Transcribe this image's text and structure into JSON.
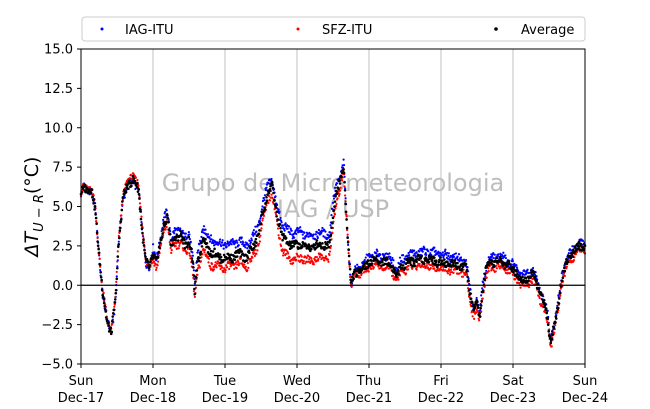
{
  "chart_data": {
    "type": "scatter",
    "ylabel": "ΔT_U−R(°C)",
    "ylabel_main": "ΔT",
    "ylabel_sub": "U − R",
    "ylabel_unit": "(°C)",
    "ylim": [
      -5.0,
      15.0
    ],
    "yticks": [
      "−5.0",
      "−2.5",
      "0.0",
      "2.5",
      "5.0",
      "7.5",
      "10.0",
      "12.5",
      "15.0"
    ],
    "ytick_values": [
      -5.0,
      -2.5,
      0.0,
      2.5,
      5.0,
      7.5,
      10.0,
      12.5,
      15.0
    ],
    "xlim": [
      0,
      7
    ],
    "x_unit": "days since Sun Dec-17 00:00",
    "xticks": [
      {
        "day": "Sun",
        "date": "Dec-17"
      },
      {
        "day": "Mon",
        "date": "Dec-18"
      },
      {
        "day": "Tue",
        "date": "Dec-19"
      },
      {
        "day": "Wed",
        "date": "Dec-20"
      },
      {
        "day": "Thu",
        "date": "Dec-21"
      },
      {
        "day": "Fri",
        "date": "Dec-22"
      },
      {
        "day": "Sat",
        "date": "Dec-23"
      },
      {
        "day": "Sun",
        "date": "Dec-24"
      }
    ],
    "grid": "vertical",
    "legend_position": "top",
    "watermark": [
      "Grupo de Micrometeorologia",
      "IAG / USP"
    ],
    "average_anchors": [
      [
        0.0,
        5.8
      ],
      [
        0.05,
        6.3
      ],
      [
        0.1,
        6.1
      ],
      [
        0.15,
        5.9
      ],
      [
        0.2,
        4.8
      ],
      [
        0.25,
        2.0
      ],
      [
        0.3,
        -0.5
      ],
      [
        0.36,
        -2.2
      ],
      [
        0.42,
        -3.0
      ],
      [
        0.48,
        -1.0
      ],
      [
        0.52,
        2.5
      ],
      [
        0.58,
        5.5
      ],
      [
        0.65,
        6.3
      ],
      [
        0.72,
        6.8
      ],
      [
        0.8,
        6.0
      ],
      [
        0.85,
        3.5
      ],
      [
        0.9,
        1.5
      ],
      [
        0.95,
        1.0
      ],
      [
        1.0,
        2.0
      ],
      [
        1.05,
        1.5
      ],
      [
        1.1,
        2.5
      ],
      [
        1.15,
        3.8
      ],
      [
        1.2,
        4.5
      ],
      [
        1.25,
        2.5
      ],
      [
        1.3,
        3.0
      ],
      [
        1.38,
        3.2
      ],
      [
        1.45,
        2.5
      ],
      [
        1.5,
        3.0
      ],
      [
        1.55,
        1.5
      ],
      [
        1.58,
        -0.5
      ],
      [
        1.62,
        1.5
      ],
      [
        1.7,
        3.0
      ],
      [
        1.78,
        2.2
      ],
      [
        1.85,
        2.0
      ],
      [
        1.92,
        1.8
      ],
      [
        2.0,
        1.7
      ],
      [
        2.1,
        1.8
      ],
      [
        2.2,
        2.0
      ],
      [
        2.3,
        1.8
      ],
      [
        2.4,
        2.5
      ],
      [
        2.48,
        3.5
      ],
      [
        2.52,
        4.5
      ],
      [
        2.55,
        5.0
      ],
      [
        2.6,
        6.0
      ],
      [
        2.65,
        6.3
      ],
      [
        2.7,
        5.0
      ],
      [
        2.75,
        4.0
      ],
      [
        2.8,
        3.0
      ],
      [
        2.85,
        2.8
      ],
      [
        2.95,
        2.5
      ],
      [
        3.05,
        2.6
      ],
      [
        3.15,
        2.4
      ],
      [
        3.25,
        2.5
      ],
      [
        3.35,
        2.6
      ],
      [
        3.45,
        2.5
      ],
      [
        3.5,
        4.5
      ],
      [
        3.55,
        6.0
      ],
      [
        3.6,
        6.5
      ],
      [
        3.65,
        7.5
      ],
      [
        3.68,
        5.0
      ],
      [
        3.72,
        2.0
      ],
      [
        3.75,
        0.0
      ],
      [
        3.8,
        0.8
      ],
      [
        3.88,
        1.0
      ],
      [
        3.95,
        1.2
      ],
      [
        4.0,
        1.5
      ],
      [
        4.1,
        1.6
      ],
      [
        4.2,
        1.5
      ],
      [
        4.28,
        1.4
      ],
      [
        4.33,
        1.2
      ],
      [
        4.38,
        0.5
      ],
      [
        4.45,
        1.2
      ],
      [
        4.55,
        1.5
      ],
      [
        4.65,
        1.6
      ],
      [
        4.8,
        1.7
      ],
      [
        4.95,
        1.5
      ],
      [
        5.1,
        1.4
      ],
      [
        5.25,
        1.3
      ],
      [
        5.35,
        1.1
      ],
      [
        5.42,
        -1.0
      ],
      [
        5.46,
        -1.5
      ],
      [
        5.5,
        -1.2
      ],
      [
        5.54,
        -2.0
      ],
      [
        5.58,
        -0.2
      ],
      [
        5.62,
        0.8
      ],
      [
        5.68,
        1.4
      ],
      [
        5.75,
        1.5
      ],
      [
        5.85,
        1.5
      ],
      [
        5.95,
        1.2
      ],
      [
        6.05,
        0.8
      ],
      [
        6.12,
        0.3
      ],
      [
        6.2,
        0.5
      ],
      [
        6.28,
        0.7
      ],
      [
        6.33,
        0.2
      ],
      [
        6.38,
        -0.5
      ],
      [
        6.42,
        -1.0
      ],
      [
        6.48,
        -2.0
      ],
      [
        6.52,
        -3.5
      ],
      [
        6.58,
        -2.5
      ],
      [
        6.62,
        -1.5
      ],
      [
        6.68,
        0.5
      ],
      [
        6.75,
        1.5
      ],
      [
        6.82,
        2.0
      ],
      [
        6.9,
        2.4
      ],
      [
        7.0,
        2.5
      ]
    ],
    "series": [
      {
        "name": "IAG-ITU",
        "color": "#0000ff",
        "offset_anchors": [
          [
            0,
            0
          ],
          [
            0.9,
            0
          ],
          [
            1.0,
            0.3
          ],
          [
            1.5,
            0.4
          ],
          [
            1.8,
            0.8
          ],
          [
            2.0,
            0.9
          ],
          [
            2.5,
            0.6
          ],
          [
            2.7,
            0.4
          ],
          [
            2.8,
            0.8
          ],
          [
            3.5,
            0.7
          ],
          [
            3.7,
            0
          ],
          [
            4.0,
            0.3
          ],
          [
            5.0,
            0.5
          ],
          [
            5.4,
            0.3
          ],
          [
            5.6,
            0.3
          ],
          [
            6.0,
            0.3
          ],
          [
            6.3,
            0.2
          ],
          [
            7,
            0.2
          ]
        ]
      },
      {
        "name": "SFZ-ITU",
        "color": "#ff0000",
        "offset_anchors": [
          [
            0,
            0
          ],
          [
            0.9,
            0.3
          ],
          [
            1.0,
            -0.3
          ],
          [
            1.5,
            -0.5
          ],
          [
            1.8,
            -0.8
          ],
          [
            2.0,
            -0.6
          ],
          [
            2.5,
            -0.6
          ],
          [
            2.7,
            -0.4
          ],
          [
            2.8,
            -0.9
          ],
          [
            3.5,
            -0.8
          ],
          [
            3.7,
            0
          ],
          [
            4.0,
            -0.3
          ],
          [
            5.0,
            -0.4
          ],
          [
            5.4,
            -0.4
          ],
          [
            5.6,
            -0.3
          ],
          [
            6.0,
            -0.3
          ],
          [
            6.3,
            -0.4
          ],
          [
            7,
            -0.2
          ]
        ]
      },
      {
        "name": "Average",
        "color": "#000000",
        "offset_anchors": [
          [
            0,
            0
          ],
          [
            7,
            0
          ]
        ]
      }
    ]
  }
}
